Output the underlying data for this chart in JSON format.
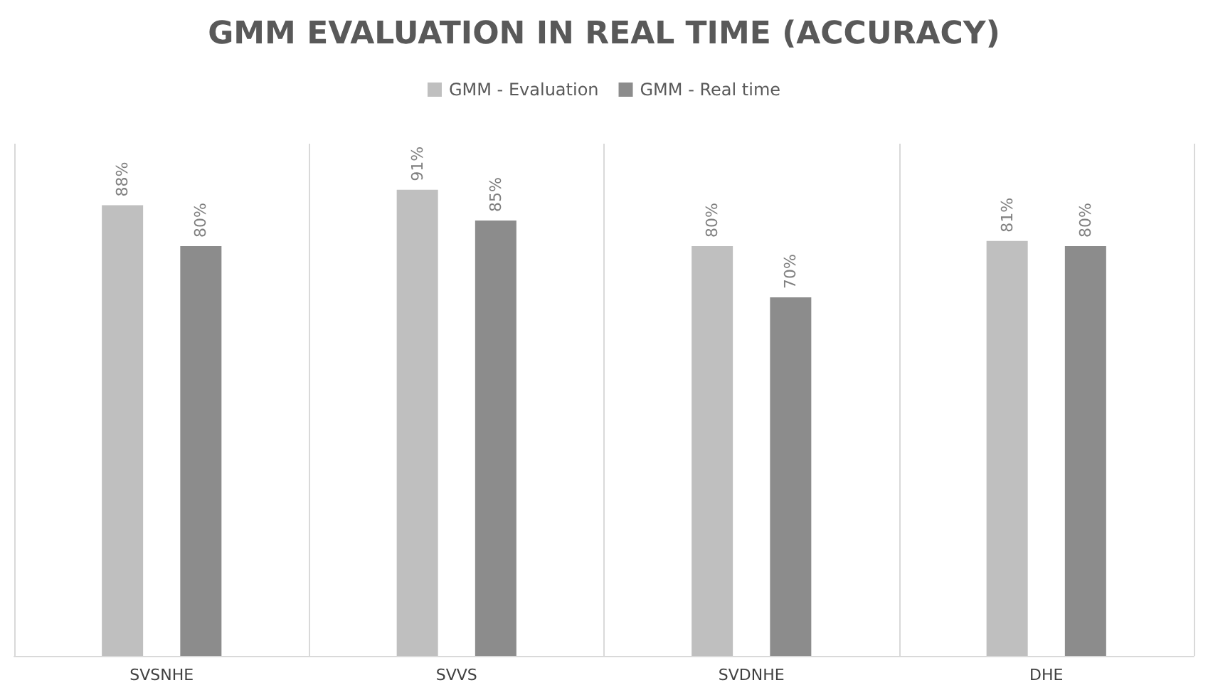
{
  "chart_data": {
    "type": "bar",
    "title": "GMM EVALUATION IN REAL TIME (ACCURACY)",
    "categories": [
      "SVSNHE",
      "SVVS",
      "SVDNHE",
      "DHE"
    ],
    "series": [
      {
        "name": "GMM - Evaluation",
        "color": "#bfbfbf",
        "values": [
          88,
          91,
          80,
          81
        ],
        "value_labels": [
          "88%",
          "91%",
          "80%",
          "81%"
        ]
      },
      {
        "name": "GMM - Real time",
        "color": "#8c8c8c",
        "values": [
          80,
          85,
          70,
          80
        ],
        "value_labels": [
          "80%",
          "85%",
          "70%",
          "80%"
        ]
      }
    ],
    "ylim": [
      0,
      100
    ],
    "tick_labels": "x",
    "grid": "x",
    "legend": "top"
  }
}
